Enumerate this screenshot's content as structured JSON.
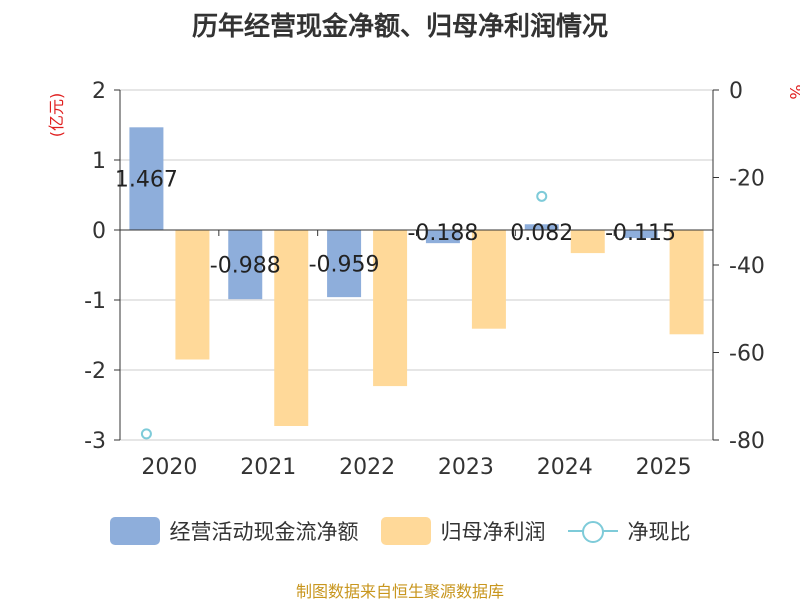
{
  "chart_data": {
    "type": "bar",
    "title": "历年经营现金净额、归母净利润情况",
    "categories": [
      "2020",
      "2021",
      "2022",
      "2023",
      "2024",
      "2025"
    ],
    "y_left": {
      "label": "(亿元)",
      "min": -3,
      "max": 2,
      "ticks": [
        "2",
        "1",
        "0",
        "-1",
        "-2",
        "-3"
      ]
    },
    "y_right": {
      "label": "%",
      "min": -80,
      "max": 0,
      "ticks": [
        "0",
        "-20",
        "-40",
        "-60",
        "-80"
      ]
    },
    "series": [
      {
        "name": "经营活动现金流净额",
        "type": "bar",
        "axis": "left",
        "color": "#8eaedb",
        "values": [
          1.467,
          -0.988,
          -0.959,
          -0.188,
          0.082,
          -0.115
        ],
        "labels": [
          "1.467",
          "-0.988",
          "-0.959",
          "-0.188",
          "0.082",
          "-0.115"
        ]
      },
      {
        "name": "归母净利润",
        "type": "bar",
        "axis": "left",
        "color": "#ffd999",
        "values": [
          -1.85,
          -2.8,
          -2.23,
          -1.41,
          -0.33,
          -1.49
        ]
      },
      {
        "name": "净现比",
        "type": "scatter",
        "axis": "right",
        "color": "#7ecbd9",
        "values": [
          -78.6,
          null,
          null,
          null,
          -24.3,
          null
        ]
      }
    ],
    "source": "制图数据来自恒生聚源数据库"
  }
}
